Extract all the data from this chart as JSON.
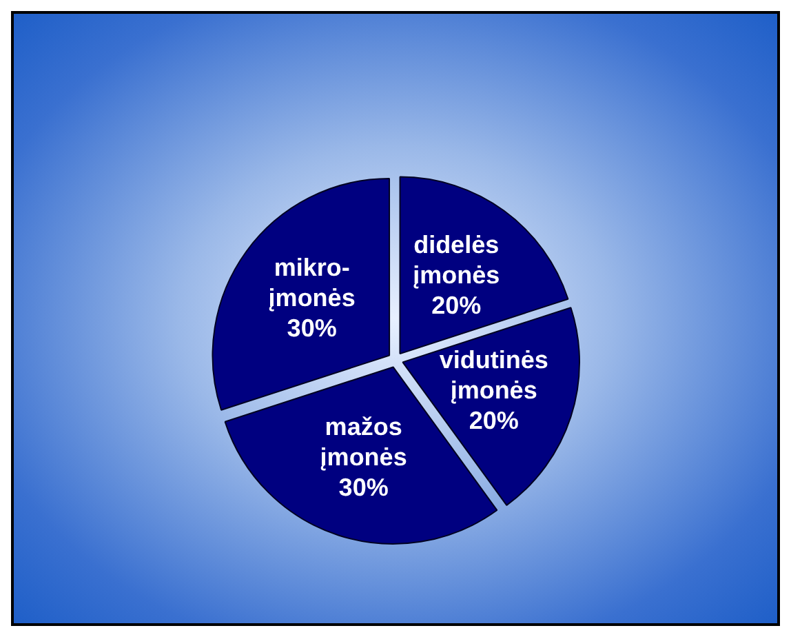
{
  "chart_data": {
    "type": "pie",
    "categories": [
      "didelės įmonės",
      "vidutinės įmonės",
      "mažos įmonės",
      "mikro-įmonės"
    ],
    "values": [
      20,
      20,
      30,
      30
    ],
    "colors": [
      "#000080",
      "#000080",
      "#000080",
      "#000080"
    ],
    "value_labels": [
      "20%",
      "20%",
      "30%",
      "30%"
    ],
    "legend": false
  }
}
